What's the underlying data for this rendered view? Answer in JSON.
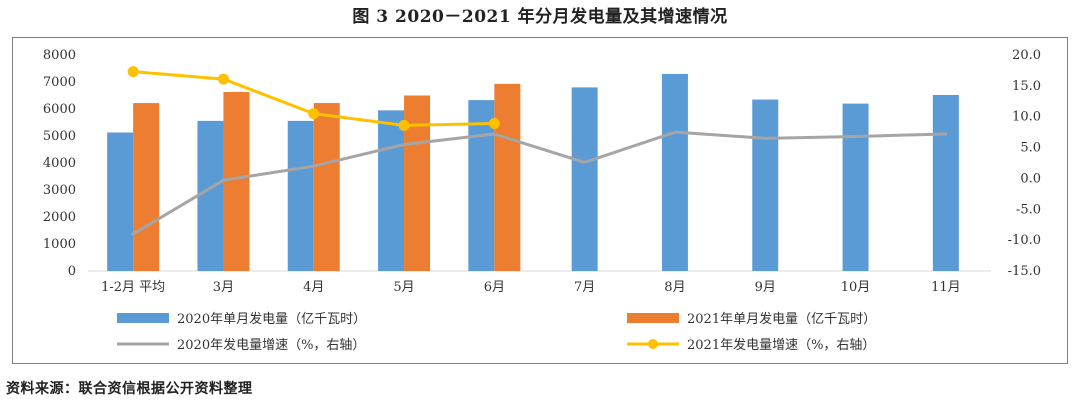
{
  "figure_title": "图 3    2020－2021 年分月发电量及其增速情况",
  "source": "资料来源：联合资信根据公开资料整理",
  "colors": {
    "bar_2020": "#5b9bd5",
    "bar_2021": "#ed7d31",
    "line_2020": "#a5a5a5",
    "line_2021": "#ffc000",
    "axis": "#d9d9d9",
    "text": "#333333"
  },
  "chart_data": {
    "type": "bar",
    "categories": [
      "1-2月 平均",
      "3月",
      "4月",
      "5月",
      "6月",
      "7月",
      "8月",
      "9月",
      "10月",
      "11月"
    ],
    "y_left": {
      "ylim": [
        0,
        8000
      ],
      "ticks": [
        "0",
        "1000",
        "2000",
        "3000",
        "4000",
        "5000",
        "6000",
        "7000",
        "8000"
      ]
    },
    "y_right": {
      "ylim": [
        -15,
        20
      ],
      "ticks": [
        "-15.0",
        "-10.0",
        "-5.0",
        "0.0",
        "5.0",
        "10.0",
        "15.0",
        "20.0"
      ]
    },
    "series": [
      {
        "name": "2020年单月发电量（亿千瓦时）",
        "kind": "bar",
        "axis": "left",
        "color": "#5b9bd5",
        "values": [
          5130,
          5560,
          5560,
          5950,
          6330,
          6800,
          7300,
          6350,
          6200,
          6520
        ]
      },
      {
        "name": "2021年单月发电量（亿千瓦时）",
        "kind": "bar",
        "axis": "left",
        "color": "#ed7d31",
        "values": [
          6220,
          6630,
          6220,
          6500,
          6930,
          null,
          null,
          null,
          null,
          null
        ]
      },
      {
        "name": "2020年发电量增速（%，右轴）",
        "kind": "line",
        "axis": "right",
        "color": "#a5a5a5",
        "values": [
          -9.0,
          -0.3,
          2.0,
          5.5,
          7.2,
          2.6,
          7.5,
          6.5,
          6.8,
          7.2
        ]
      },
      {
        "name": "2021年发电量增速（%，右轴）",
        "kind": "line",
        "axis": "right",
        "color": "#ffc000",
        "marker": "circle",
        "values": [
          17.3,
          16.1,
          10.5,
          8.6,
          8.9,
          null,
          null,
          null,
          null,
          null
        ]
      }
    ],
    "legend_position": "bottom",
    "grid": false
  }
}
